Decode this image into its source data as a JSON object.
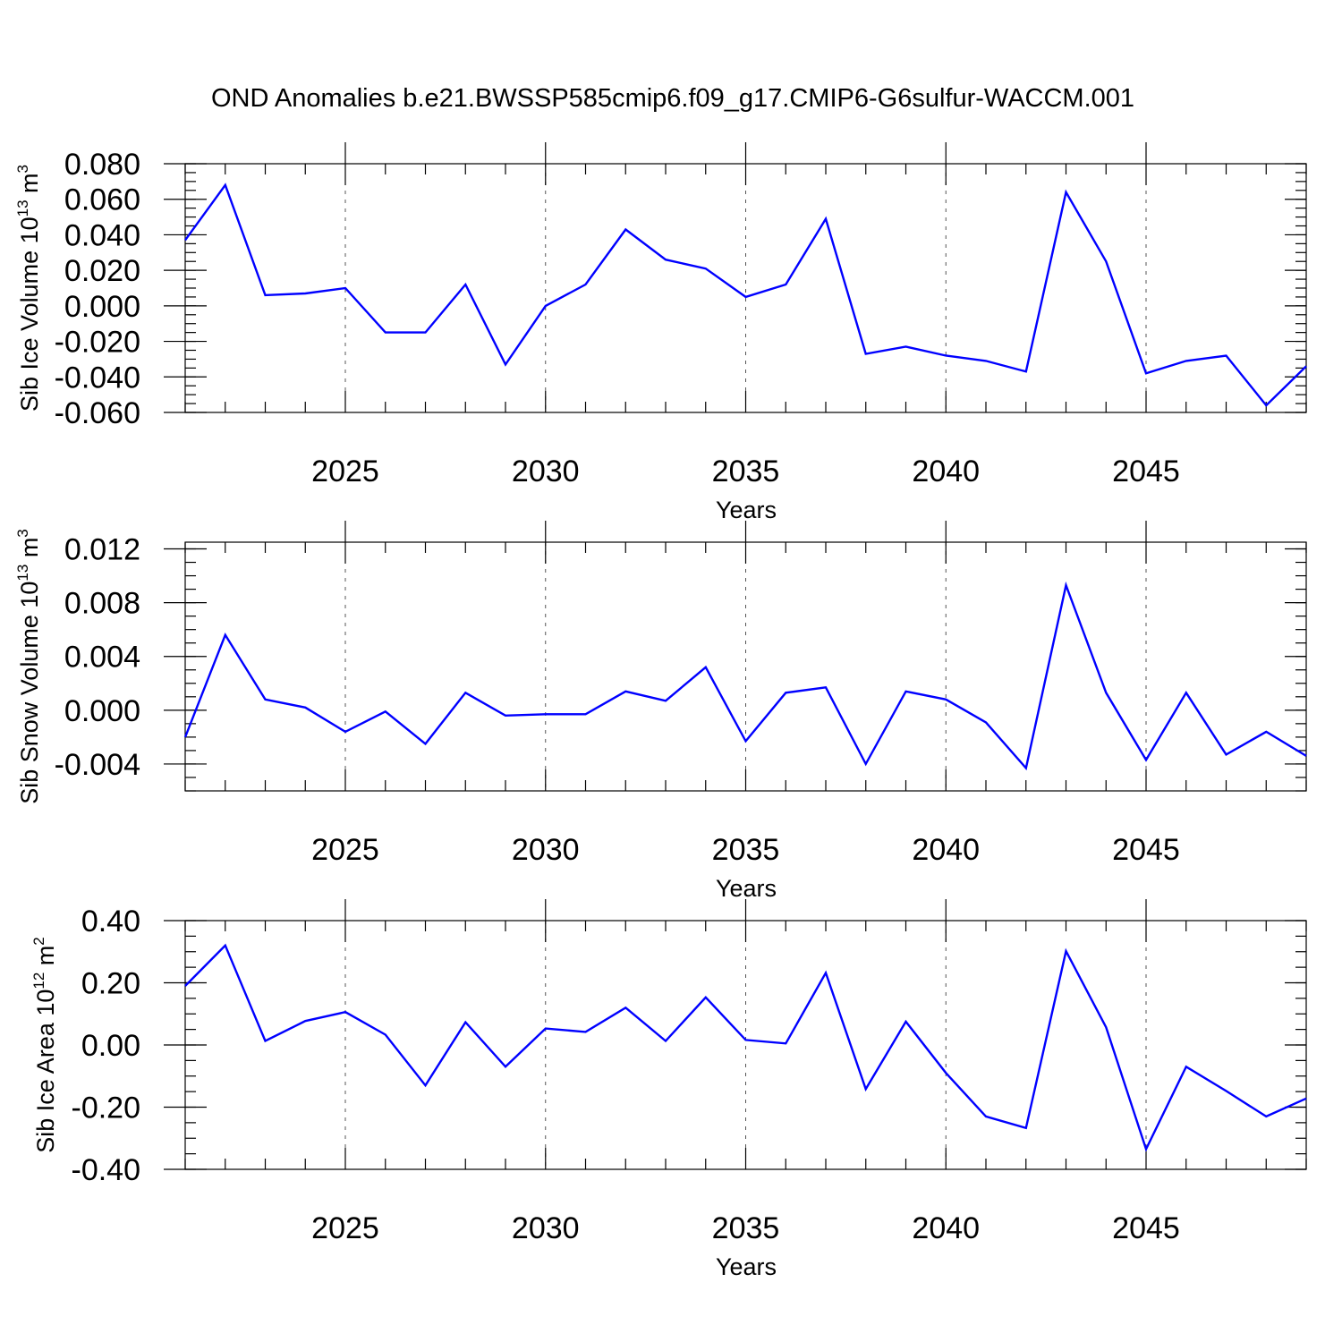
{
  "title": "OND Anomalies b.e21.BWSSP585cmip6.f09_g17.CMIP6-G6sulfur-WACCM.001",
  "colors": {
    "series": "#0000ff",
    "axis": "#000000",
    "grid": "#555555"
  },
  "chart_data": [
    {
      "type": "line",
      "ylabel_main": "Sib Ice Volume 10",
      "ylabel_exp": "13",
      "ylabel_unit": " m",
      "ylabel_unit_exp": "3",
      "xlabel": "Years",
      "xlim": [
        2021,
        2049
      ],
      "ylim": [
        -0.06,
        0.08
      ],
      "yticks": [
        -0.06,
        -0.04,
        -0.02,
        0.0,
        0.02,
        0.04,
        0.06,
        0.08
      ],
      "ytick_labels": [
        "-0.060",
        "-0.040",
        "-0.020",
        "0.000",
        "0.020",
        "0.040",
        "0.060",
        "0.080"
      ],
      "yminor_step": 0.005,
      "xticks": [
        2025,
        2030,
        2035,
        2040,
        2045
      ],
      "xtick_labels": [
        "2025",
        "2030",
        "2035",
        "2040",
        "2045"
      ],
      "grid_x": true,
      "x": [
        2021,
        2022,
        2023,
        2024,
        2025,
        2026,
        2027,
        2028,
        2029,
        2030,
        2031,
        2032,
        2033,
        2034,
        2035,
        2036,
        2037,
        2038,
        2039,
        2040,
        2041,
        2042,
        2043,
        2044,
        2045,
        2046,
        2047,
        2048,
        2049
      ],
      "values": [
        0.037,
        0.068,
        0.006,
        0.007,
        0.01,
        -0.015,
        -0.015,
        0.012,
        -0.033,
        0.0,
        0.012,
        0.043,
        0.026,
        0.021,
        0.005,
        0.012,
        0.049,
        -0.027,
        -0.023,
        -0.028,
        -0.031,
        -0.037,
        0.064,
        0.025,
        -0.038,
        -0.031,
        -0.028,
        -0.056,
        -0.034
      ]
    },
    {
      "type": "line",
      "ylabel_main": "Sib Snow Volume 10",
      "ylabel_exp": "13",
      "ylabel_unit": " m",
      "ylabel_unit_exp": "3",
      "xlabel": "Years",
      "xlim": [
        2021,
        2049
      ],
      "ylim": [
        -0.006,
        0.0125
      ],
      "yticks": [
        -0.004,
        0.0,
        0.004,
        0.008,
        0.012
      ],
      "ytick_labels": [
        "-0.004",
        "0.000",
        "0.004",
        "0.008",
        "0.012"
      ],
      "yminor_step": 0.001,
      "xticks": [
        2025,
        2030,
        2035,
        2040,
        2045
      ],
      "xtick_labels": [
        "2025",
        "2030",
        "2035",
        "2040",
        "2045"
      ],
      "grid_x": true,
      "x": [
        2021,
        2022,
        2023,
        2024,
        2025,
        2026,
        2027,
        2028,
        2029,
        2030,
        2031,
        2032,
        2033,
        2034,
        2035,
        2036,
        2037,
        2038,
        2039,
        2040,
        2041,
        2042,
        2043,
        2044,
        2045,
        2046,
        2047,
        2048,
        2049
      ],
      "values": [
        -0.002,
        0.0056,
        0.0008,
        0.0002,
        -0.0016,
        -0.0001,
        -0.0025,
        0.0013,
        -0.0004,
        -0.0003,
        -0.0003,
        0.0014,
        0.0007,
        0.0032,
        -0.0023,
        0.0013,
        0.0017,
        -0.004,
        0.0014,
        0.0008,
        -0.0009,
        -0.0043,
        0.0093,
        0.0013,
        -0.0037,
        0.0013,
        -0.0033,
        -0.0016,
        -0.0034
      ]
    },
    {
      "type": "line",
      "ylabel_main": "Sib Ice Area 10",
      "ylabel_exp": "12",
      "ylabel_unit": " m",
      "ylabel_unit_exp": "2",
      "xlabel": "Years",
      "xlim": [
        2021,
        2049
      ],
      "ylim": [
        -0.4,
        0.4
      ],
      "yticks": [
        -0.4,
        -0.2,
        0.0,
        0.2,
        0.4
      ],
      "ytick_labels": [
        "-0.40",
        "-0.20",
        "0.00",
        "0.20",
        "0.40"
      ],
      "yminor_step": 0.05,
      "xticks": [
        2025,
        2030,
        2035,
        2040,
        2045
      ],
      "xtick_labels": [
        "2025",
        "2030",
        "2035",
        "2040",
        "2045"
      ],
      "grid_x": true,
      "x": [
        2021,
        2022,
        2023,
        2024,
        2025,
        2026,
        2027,
        2028,
        2029,
        2030,
        2031,
        2032,
        2033,
        2034,
        2035,
        2036,
        2037,
        2038,
        2039,
        2040,
        2041,
        2042,
        2043,
        2044,
        2045,
        2046,
        2047,
        2048,
        2049
      ],
      "values": [
        0.19,
        0.32,
        0.013,
        0.077,
        0.106,
        0.033,
        -0.13,
        0.073,
        -0.07,
        0.053,
        0.042,
        0.12,
        0.013,
        0.153,
        0.016,
        0.005,
        0.232,
        -0.142,
        0.075,
        -0.09,
        -0.23,
        -0.267,
        0.302,
        0.057,
        -0.335,
        -0.07,
        -0.148,
        -0.23,
        -0.172
      ]
    }
  ]
}
